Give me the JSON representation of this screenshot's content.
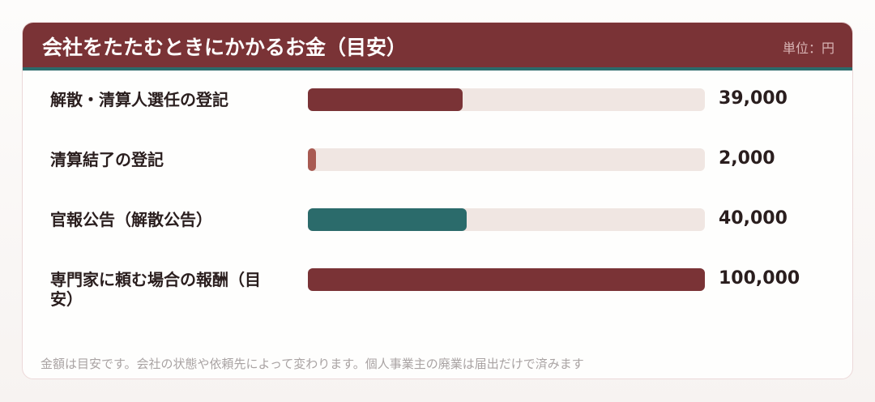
{
  "chart_data": {
    "type": "bar",
    "orientation": "horizontal",
    "title": "会社をたたむときにかかるお金（目安）",
    "unit": "単位：円",
    "categories": [
      "解散・清算人選任の登記",
      "清算結了の登記",
      "官報公告（解散公告）",
      "専門家に頼む場合の報酬（目安）"
    ],
    "values": [
      39000,
      2000,
      40000,
      100000
    ],
    "value_labels": [
      "39,000",
      "2,000",
      "40,000",
      "100,000"
    ],
    "colors": [
      "#7a3336",
      "#a85a52",
      "#2b6b6b",
      "#7a3336"
    ],
    "xlim": [
      0,
      100000
    ],
    "note": "金額は目安です。会社の状態や依頼先によって変わります。個人事業主の廃業は届出だけで済みます"
  }
}
